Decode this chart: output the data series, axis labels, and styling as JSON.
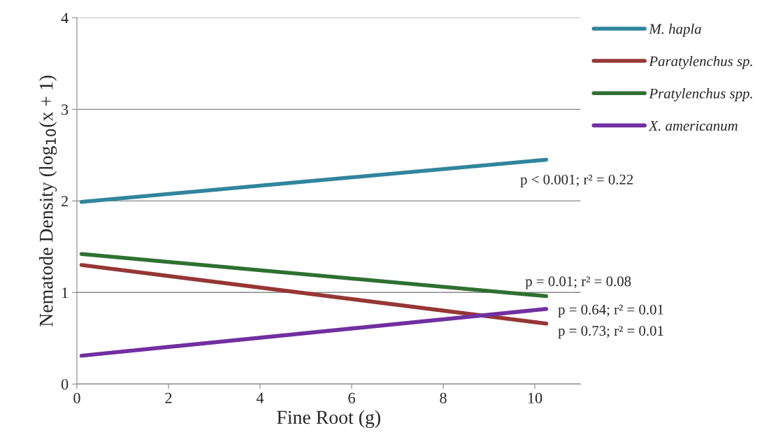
{
  "chart_data": {
    "type": "line",
    "xlabel": "Fine Root (g)",
    "ylabel": "Nematode Density (log$_{10}$(x + 1)",
    "x": [
      0.1,
      10.25
    ],
    "xlim": [
      0,
      11
    ],
    "xticks": [
      0,
      2,
      4,
      6,
      8,
      10
    ],
    "ylim": [
      0,
      4
    ],
    "yticks": [
      0,
      1,
      2,
      3,
      4
    ],
    "grid": "y",
    "legend": "right",
    "marker": "none",
    "line_style": "solid",
    "series": [
      {
        "name": "M. hapla",
        "color": "#31859c",
        "values": [
          1.99,
          2.45
        ]
      },
      {
        "name": "Paratylenchus sp.",
        "color": "#953735",
        "values": [
          1.3,
          0.66
        ]
      },
      {
        "name": "Pratylenchus spp.",
        "color": "#2e7031",
        "values": [
          1.42,
          0.96
        ]
      },
      {
        "name": "X. americanum",
        "color": "#7030a0",
        "values": [
          0.31,
          0.82
        ]
      }
    ],
    "annotations": [
      "p < 0.001; r² = 0.22",
      "p = 0.01; r² = 0.08",
      "p = 0.64; r² = 0.01",
      "p = 0.73; r² = 0.01"
    ]
  }
}
